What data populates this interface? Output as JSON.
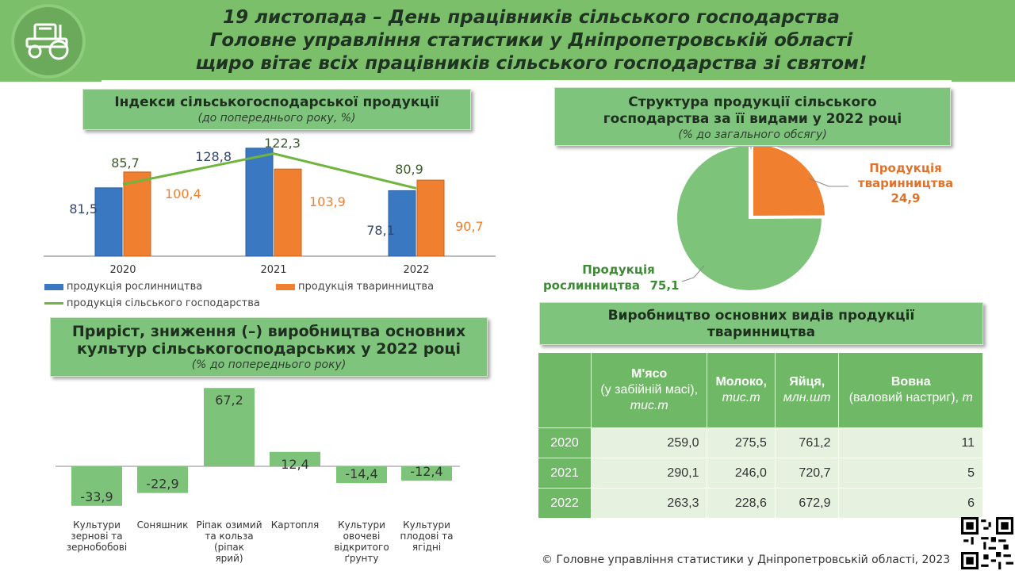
{
  "header": {
    "lines": [
      "19 листопада – День працівників сільського господарства",
      "Головне управління статистики у Дніпропетровській області",
      "щиро вітає всіх працівників сільського господарства зі святом!"
    ],
    "logo_icon": "tractor-icon"
  },
  "colors": {
    "green": "#7bbf6a",
    "blue": "#3a78c2",
    "orange": "#f07f30",
    "line": "#6fb53e",
    "pie_green": "#7dc47a",
    "pie_orange": "#f07f30"
  },
  "panels": {
    "indices": {
      "title": "Індекси сільськогосподарської продукції",
      "subtitle": "(до попереднього року, %)"
    },
    "growth": {
      "title_line1": "Приріст, зниження (–) виробництва основних",
      "title_line2": "культур сільськогосподарських у 2022 році",
      "subtitle": "(% до попереднього року)"
    },
    "structure": {
      "title_line1": "Структура продукції сільського",
      "title_line2": "господарства за її видами у 2022 році",
      "subtitle": "(% до загального обсягу)"
    },
    "livestock": {
      "title_line1": "Виробництво основних видів продукції",
      "title_line2": "тваринництва"
    }
  },
  "chart_data": [
    {
      "type": "bar",
      "categories": [
        "2020",
        "2021",
        "2022"
      ],
      "series": [
        {
          "name": "продукція рослинництва",
          "values": [
            81.5,
            128.8,
            78.1
          ],
          "labels": [
            "81,5",
            "128,8",
            "78,1"
          ]
        },
        {
          "name": "продукція тваринництва",
          "values": [
            100.4,
            103.9,
            90.7
          ],
          "labels": [
            "100,4",
            "103,9",
            "90,7"
          ]
        },
        {
          "name": "продукція сільського господарства",
          "kind": "line",
          "values": [
            85.7,
            122.3,
            80.9
          ],
          "labels": [
            "85,7",
            "122,3",
            "80,9"
          ]
        }
      ],
      "ylim": [
        0,
        140
      ]
    },
    {
      "type": "bar",
      "categories": [
        "Культури зернові та зернобобові",
        "Соняшник",
        "Ріпак озимий та кольза (ріпак ярий)",
        "Картопля",
        "Культури овочеві відкритого ґрунту",
        "Культури плодові та ягідні"
      ],
      "category_lines": [
        [
          "Культури",
          "зернові та",
          "зернобобові"
        ],
        [
          "Соняшник"
        ],
        [
          "Ріпак озимий",
          "та кольза",
          "(ріпак",
          "ярий)"
        ],
        [
          "Картопля"
        ],
        [
          "Культури",
          "овочеві",
          "відкритого",
          "ґрунту"
        ],
        [
          "Культури",
          "плодові та",
          "ягідні"
        ]
      ],
      "values": [
        -33.9,
        -22.9,
        67.2,
        12.4,
        -14.4,
        -12.4
      ],
      "labels": [
        "-33,9",
        "-22,9",
        "67,2",
        "12,4",
        "-14,4",
        "-12,4"
      ],
      "ylim": [
        -40,
        70
      ]
    },
    {
      "type": "pie",
      "slices": [
        {
          "name_line1": "Продукція",
          "name_line2": "тваринництва",
          "value": 24.9,
          "label": "24,9"
        },
        {
          "name_line1": "Продукція",
          "name_line2": "рослинництва",
          "value": 75.1,
          "label": "75,1"
        }
      ]
    },
    {
      "type": "table",
      "columns": [
        {
          "bold": "М'ясо",
          "rest": "(у забійній масі),",
          "unit": "тис.т"
        },
        {
          "bold": "Молоко,",
          "rest": "",
          "unit": "тис.т"
        },
        {
          "bold": "Яйця,",
          "rest": "",
          "unit": "млн.шт"
        },
        {
          "bold": "Вовна",
          "rest": "(валовий настриг),",
          "unit": "т"
        }
      ],
      "rows": [
        {
          "year": "2020",
          "values": [
            "259,0",
            "275,5",
            "761,2",
            "11"
          ]
        },
        {
          "year": "2021",
          "values": [
            "290,1",
            "246,0",
            "720,7",
            "5"
          ]
        },
        {
          "year": "2022",
          "values": [
            "263,3",
            "228,6",
            "672,9",
            "6"
          ]
        }
      ]
    }
  ],
  "footer": {
    "copyright": "© Головне управління  статистики у Дніпропетровській  області, 2023",
    "qr_icon": "qr-code-icon"
  }
}
